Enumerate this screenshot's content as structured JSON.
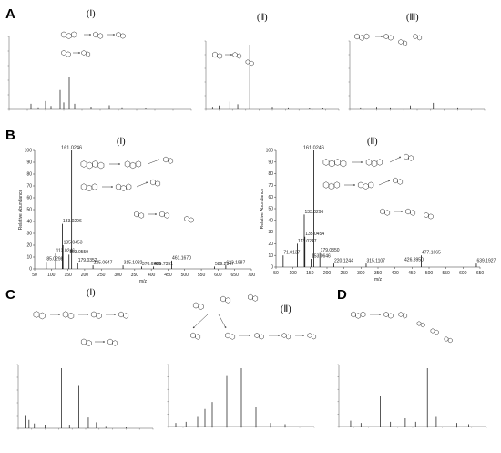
{
  "panels": {
    "A": "A",
    "B": "B",
    "C": "C",
    "D": "D"
  },
  "sub_labels": {
    "A1": "(Ⅰ)",
    "A2": "(Ⅱ)",
    "A3": "(Ⅲ)",
    "B1": "(Ⅰ)",
    "B2": "(Ⅱ)",
    "C1": "(Ⅰ)",
    "C2": "(Ⅱ)"
  },
  "chart_data": [
    {
      "id": "B1",
      "type": "bar",
      "xlabel": "m/z",
      "ylabel": "Relative Abundance",
      "xlim": [
        50,
        700
      ],
      "ylim": [
        0,
        100
      ],
      "xticks": [
        50,
        100,
        150,
        200,
        250,
        300,
        350,
        400,
        450,
        500,
        550,
        600,
        650,
        700
      ],
      "yticks": [
        0,
        10,
        20,
        30,
        40,
        50,
        60,
        70,
        80,
        90,
        100
      ],
      "peaks": [
        {
          "x": 85.0298,
          "y": 6,
          "label": "85.0298"
        },
        {
          "x": 113.0246,
          "y": 13,
          "label": "113.0246"
        },
        {
          "x": 133.0296,
          "y": 38,
          "label": "133.0296"
        },
        {
          "x": 135.0453,
          "y": 20,
          "label": "135.0453"
        },
        {
          "x": 153.0559,
          "y": 12,
          "label": "153.0559"
        },
        {
          "x": 161.0246,
          "y": 100,
          "label": "161.0246"
        },
        {
          "x": 179.0352,
          "y": 5,
          "label": "179.0352"
        },
        {
          "x": 225.0647,
          "y": 3,
          "label": "225.0647"
        },
        {
          "x": 315.1082,
          "y": 3,
          "label": "315.1082"
        },
        {
          "x": 370.6985,
          "y": 2,
          "label": "370.6985"
        },
        {
          "x": 406.7351,
          "y": 2,
          "label": "406.7351"
        },
        {
          "x": 461.167,
          "y": 7,
          "label": "461.1670"
        },
        {
          "x": 589.2347,
          "y": 2,
          "label": "589.2347"
        },
        {
          "x": 623.1987,
          "y": 3,
          "label": "623.1987"
        }
      ]
    },
    {
      "id": "B2",
      "type": "bar",
      "xlabel": "m/z",
      "ylabel": "Relative Abundance",
      "xlim": [
        50,
        650
      ],
      "ylim": [
        0,
        100
      ],
      "xticks": [
        50,
        100,
        150,
        200,
        250,
        300,
        350,
        400,
        450,
        500,
        550,
        600,
        650
      ],
      "yticks": [
        0,
        10,
        20,
        30,
        40,
        50,
        60,
        70,
        80,
        90,
        100
      ],
      "peaks": [
        {
          "x": 71.0137,
          "y": 10,
          "label": "71.0137"
        },
        {
          "x": 113.0247,
          "y": 20,
          "label": "113.0247"
        },
        {
          "x": 133.0296,
          "y": 45,
          "label": "133.0296"
        },
        {
          "x": 135.0454,
          "y": 26,
          "label": "135.0454"
        },
        {
          "x": 153.0646,
          "y": 7,
          "label": "153.0646"
        },
        {
          "x": 161.0246,
          "y": 100,
          "label": "161.0246"
        },
        {
          "x": 179.035,
          "y": 12,
          "label": "179.0350"
        },
        {
          "x": 220.1244,
          "y": 3,
          "label": "220.1244"
        },
        {
          "x": 315.1107,
          "y": 3,
          "label": "315.1107"
        },
        {
          "x": 426.395,
          "y": 4,
          "label": "426.3950"
        },
        {
          "x": 477.1665,
          "y": 10,
          "label": "477.1665"
        },
        {
          "x": 639.1927,
          "y": 3,
          "label": "639.1927"
        }
      ]
    },
    {
      "id": "A1",
      "type": "bar",
      "peaks": [
        {
          "x": 0.12,
          "y": 8
        },
        {
          "x": 0.16,
          "y": 3
        },
        {
          "x": 0.2,
          "y": 12
        },
        {
          "x": 0.23,
          "y": 5
        },
        {
          "x": 0.28,
          "y": 28
        },
        {
          "x": 0.3,
          "y": 10
        },
        {
          "x": 0.33,
          "y": 46
        },
        {
          "x": 0.36,
          "y": 8
        },
        {
          "x": 0.45,
          "y": 4
        },
        {
          "x": 0.55,
          "y": 6
        },
        {
          "x": 0.62,
          "y": 3
        },
        {
          "x": 0.75,
          "y": 2
        }
      ]
    },
    {
      "id": "A2",
      "type": "bar",
      "peaks": [
        {
          "x": 0.05,
          "y": 4
        },
        {
          "x": 0.1,
          "y": 6
        },
        {
          "x": 0.18,
          "y": 12
        },
        {
          "x": 0.24,
          "y": 8
        },
        {
          "x": 0.33,
          "y": 100
        },
        {
          "x": 0.5,
          "y": 4
        },
        {
          "x": 0.62,
          "y": 3
        },
        {
          "x": 0.78,
          "y": 2
        },
        {
          "x": 0.88,
          "y": 2
        }
      ]
    },
    {
      "id": "A3",
      "type": "bar",
      "peaks": [
        {
          "x": 0.08,
          "y": 3
        },
        {
          "x": 0.2,
          "y": 4
        },
        {
          "x": 0.3,
          "y": 3
        },
        {
          "x": 0.45,
          "y": 6
        },
        {
          "x": 0.55,
          "y": 100
        },
        {
          "x": 0.62,
          "y": 10
        },
        {
          "x": 0.8,
          "y": 3
        }
      ]
    },
    {
      "id": "C1",
      "type": "bar",
      "peaks": [
        {
          "x": 0.05,
          "y": 22
        },
        {
          "x": 0.08,
          "y": 14
        },
        {
          "x": 0.12,
          "y": 8
        },
        {
          "x": 0.2,
          "y": 6
        },
        {
          "x": 0.32,
          "y": 100
        },
        {
          "x": 0.38,
          "y": 6
        },
        {
          "x": 0.45,
          "y": 72
        },
        {
          "x": 0.52,
          "y": 18
        },
        {
          "x": 0.58,
          "y": 10
        },
        {
          "x": 0.65,
          "y": 4
        },
        {
          "x": 0.8,
          "y": 3
        }
      ]
    },
    {
      "id": "C2",
      "type": "bar",
      "peaks": [
        {
          "x": 0.05,
          "y": 6
        },
        {
          "x": 0.12,
          "y": 8
        },
        {
          "x": 0.2,
          "y": 18
        },
        {
          "x": 0.25,
          "y": 30
        },
        {
          "x": 0.3,
          "y": 42
        },
        {
          "x": 0.4,
          "y": 88
        },
        {
          "x": 0.5,
          "y": 100
        },
        {
          "x": 0.56,
          "y": 14
        },
        {
          "x": 0.6,
          "y": 34
        },
        {
          "x": 0.7,
          "y": 6
        },
        {
          "x": 0.8,
          "y": 4
        }
      ]
    },
    {
      "id": "D",
      "type": "bar",
      "peaks": [
        {
          "x": 0.08,
          "y": 10
        },
        {
          "x": 0.15,
          "y": 6
        },
        {
          "x": 0.28,
          "y": 52
        },
        {
          "x": 0.35,
          "y": 8
        },
        {
          "x": 0.45,
          "y": 14
        },
        {
          "x": 0.52,
          "y": 8
        },
        {
          "x": 0.6,
          "y": 100
        },
        {
          "x": 0.66,
          "y": 18
        },
        {
          "x": 0.72,
          "y": 54
        },
        {
          "x": 0.8,
          "y": 6
        },
        {
          "x": 0.88,
          "y": 4
        }
      ]
    }
  ]
}
